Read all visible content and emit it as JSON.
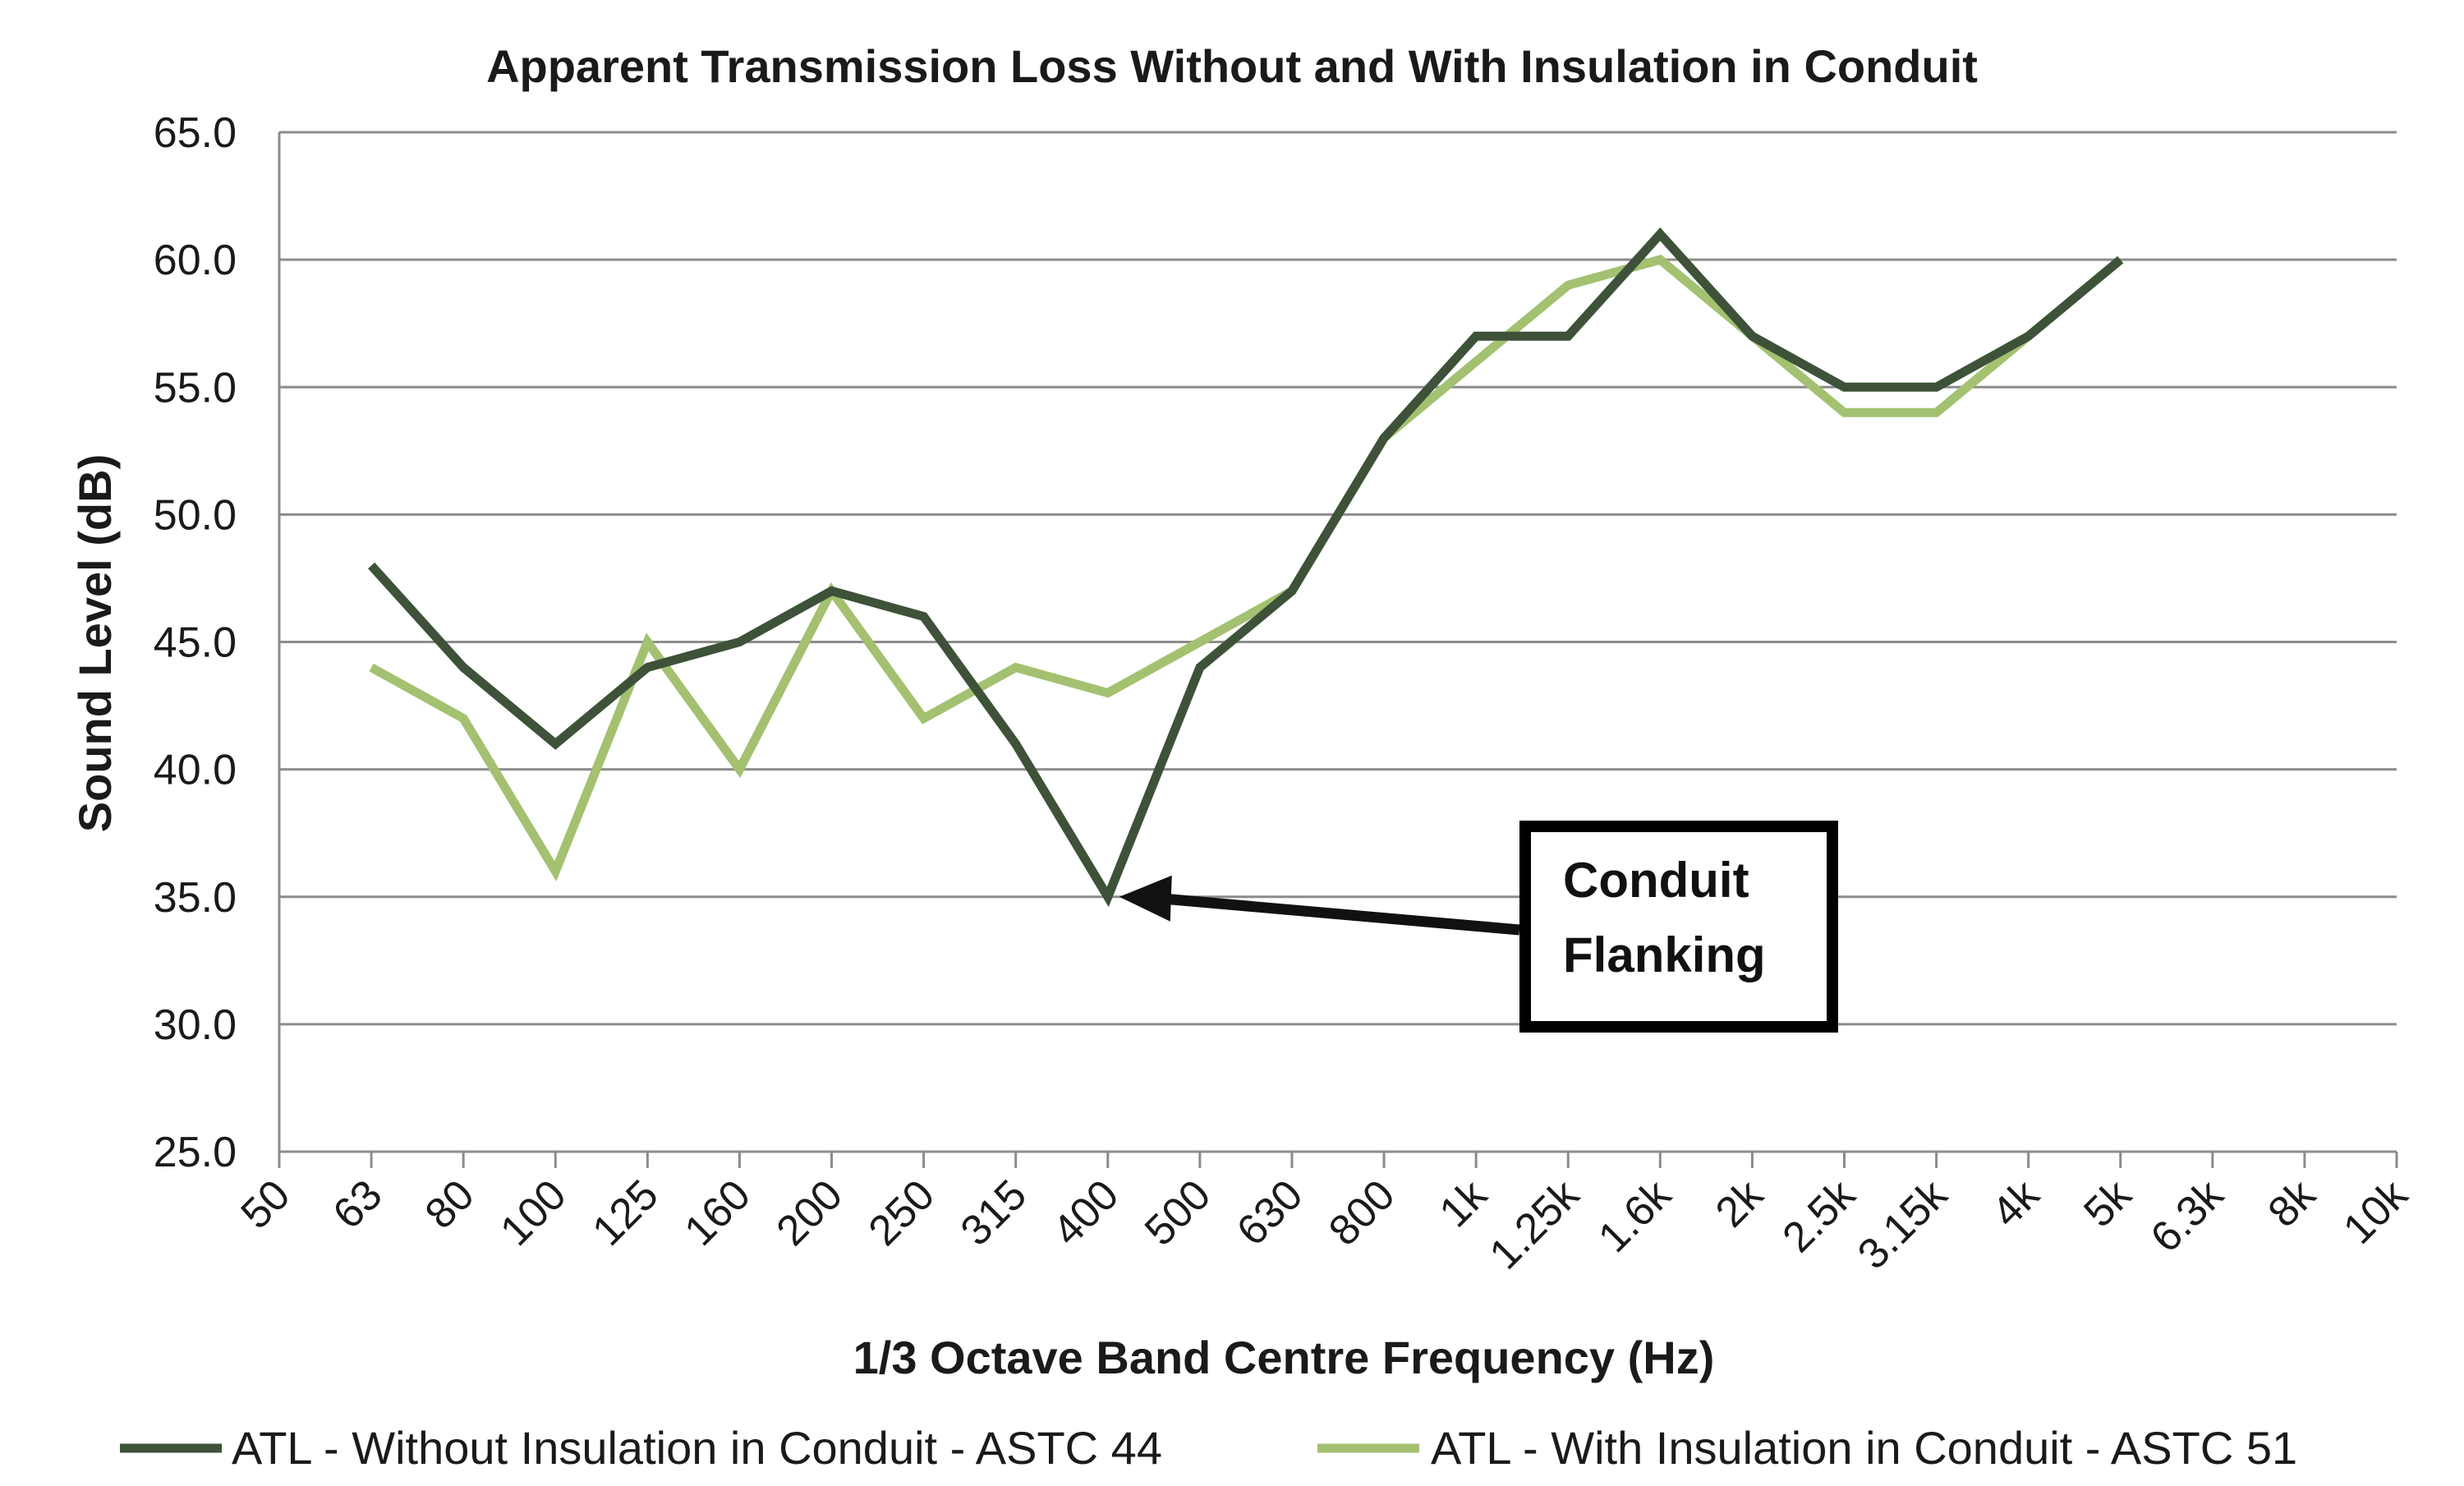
{
  "chart_data": {
    "type": "line",
    "title": "Apparent Transmission Loss Without and With Insulation in Conduit",
    "xlabel": "1/3 Octave Band Centre Frequency (Hz)",
    "ylabel": "Sound Level (dB)",
    "ylim": [
      25,
      65
    ],
    "ytick_step": 5,
    "ytick_labels": [
      "25.0",
      "30.0",
      "35.0",
      "40.0",
      "45.0",
      "50.0",
      "55.0",
      "60.0",
      "65.0"
    ],
    "grid": true,
    "legend_position": "bottom",
    "categories": [
      "50",
      "63",
      "80",
      "100",
      "125",
      "160",
      "200",
      "250",
      "315",
      "400",
      "500",
      "630",
      "800",
      "1k",
      "1.25k",
      "1.6k",
      "2k",
      "2.5k",
      "3.15k",
      "4k",
      "5k",
      "6.3k",
      "8k",
      "10k"
    ],
    "series": [
      {
        "name": "ATL - Without Insulation in Conduit - ASTC 44",
        "color": "#3d5238",
        "values": [
          null,
          48,
          44,
          41,
          44,
          45,
          47,
          46,
          41,
          35,
          44,
          47,
          53,
          57,
          57,
          61,
          57,
          55,
          55,
          57,
          60,
          null,
          null,
          null
        ]
      },
      {
        "name": "ATL - With Insulation in Conduit - ASTC 51",
        "color": "#a3c170",
        "values": [
          null,
          44,
          42,
          36,
          45,
          40,
          47,
          42,
          44,
          43,
          45,
          47,
          53,
          56,
          59,
          60,
          57,
          54,
          54,
          57,
          60,
          null,
          null,
          null
        ]
      }
    ],
    "annotation": {
      "text_lines": [
        "Conduit",
        "Flanking"
      ],
      "points_to_category": "400",
      "points_to_value": 35
    }
  }
}
